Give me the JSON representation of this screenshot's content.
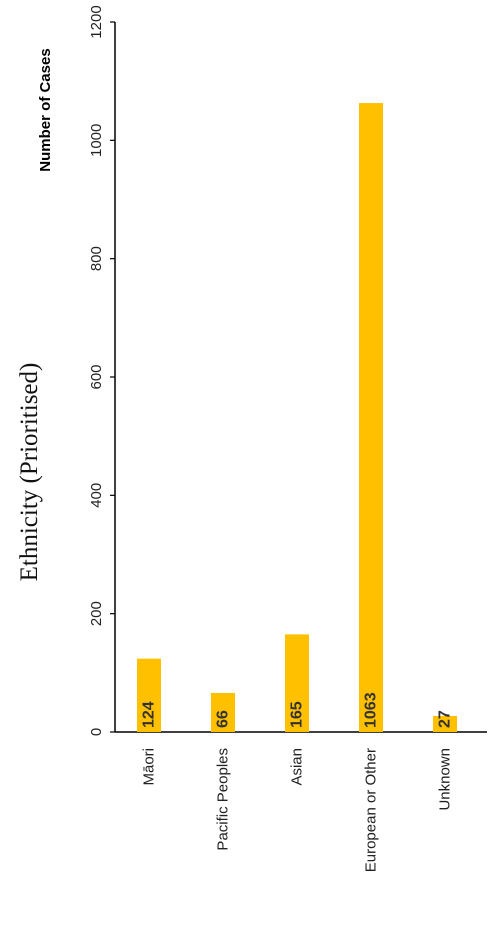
{
  "chart_data": {
    "type": "bar",
    "title": "Ethnicity (Prioritised)",
    "ylabel": "Number of Cases",
    "xlabel": "",
    "categories": [
      "Māori",
      "Pacific Peoples",
      "Asian",
      "European or Other",
      "Unknown"
    ],
    "values": [
      124,
      66,
      165,
      1063,
      27
    ],
    "ylim": [
      0,
      1200
    ],
    "yticks": [
      0,
      200,
      400,
      600,
      800,
      1000,
      1200
    ],
    "orientation": "rotated 90 degrees counter-clockwise",
    "bar_color": "#FFC000",
    "grid": false,
    "legend": "none",
    "data_labels": true
  }
}
